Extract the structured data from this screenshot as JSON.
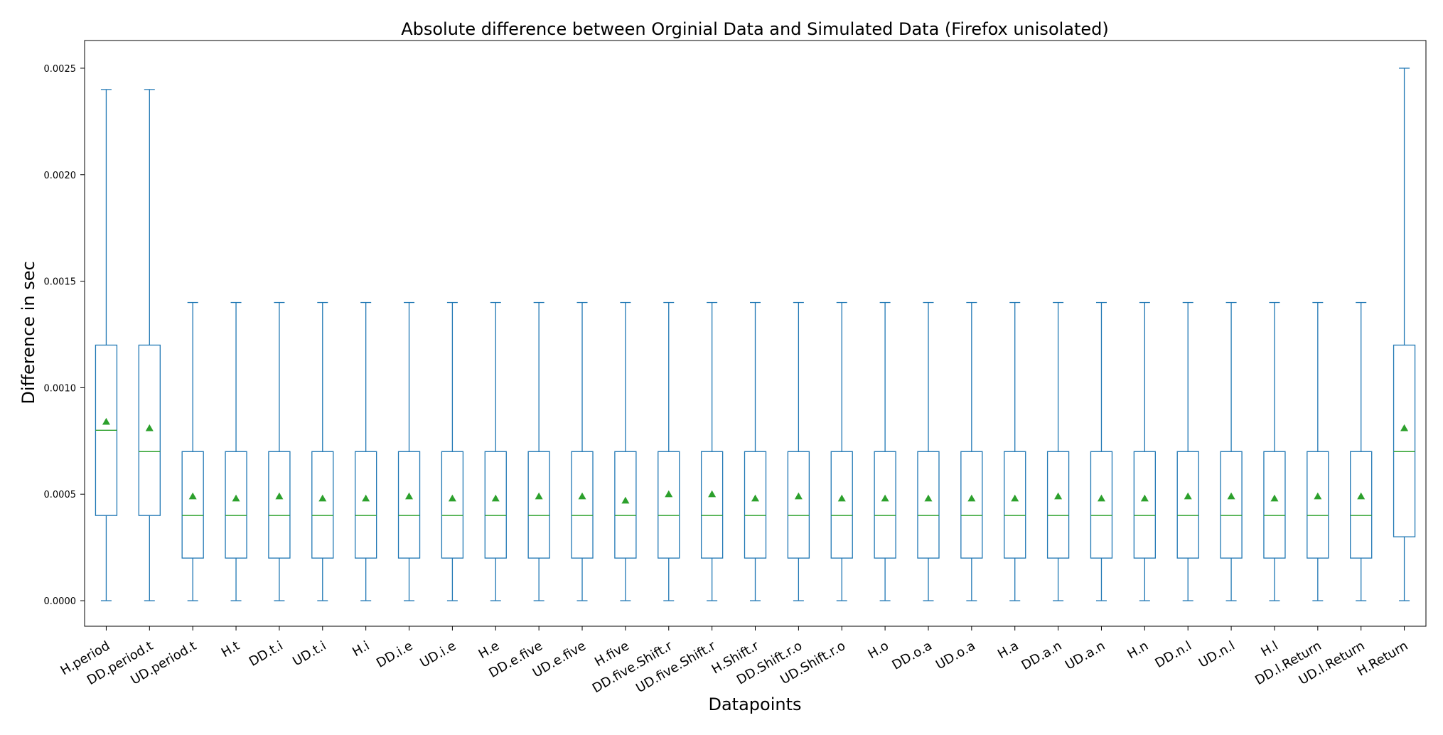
{
  "chart_data": {
    "type": "box",
    "title": "Absolute difference between Orginial Data and Simulated Data (Firefox unisolated)",
    "xlabel": "Datapoints",
    "ylabel": "Difference in sec",
    "ylim": [
      -0.00012,
      0.00263
    ],
    "yticks": [
      0.0,
      0.0005,
      0.001,
      0.0015,
      0.002,
      0.0025
    ],
    "ytick_labels": [
      "0.0000",
      "0.0005",
      "0.0010",
      "0.0015",
      "0.0020",
      "0.0025"
    ],
    "grid": false,
    "colors": {
      "box": "#1f77b4",
      "median": "#2ca02c",
      "mean": "#2ca02c"
    },
    "categories": [
      "H.period",
      "DD.period.t",
      "UD.period.t",
      "H.t",
      "DD.t.i",
      "UD.t.i",
      "H.i",
      "DD.i.e",
      "UD.i.e",
      "H.e",
      "DD.e.five",
      "UD.e.five",
      "H.five",
      "DD.five.Shift.r",
      "UD.five.Shift.r",
      "H.Shift.r",
      "DD.Shift.r.o",
      "UD.Shift.r.o",
      "H.o",
      "DD.o.a",
      "UD.o.a",
      "H.a",
      "DD.a.n",
      "UD.a.n",
      "H.n",
      "DD.n.l",
      "UD.n.l",
      "H.l",
      "DD.l.Return",
      "UD.l.Return",
      "H.Return"
    ],
    "boxes": [
      {
        "whislo": 0.0,
        "q1": 0.0004,
        "median": 0.0008,
        "q3": 0.0012,
        "whishi": 0.0024,
        "mean": 0.00084
      },
      {
        "whislo": 0.0,
        "q1": 0.0004,
        "median": 0.0007,
        "q3": 0.0012,
        "whishi": 0.0024,
        "mean": 0.00081
      },
      {
        "whislo": 0.0,
        "q1": 0.0002,
        "median": 0.0004,
        "q3": 0.0007,
        "whishi": 0.0014,
        "mean": 0.00049
      },
      {
        "whislo": 0.0,
        "q1": 0.0002,
        "median": 0.0004,
        "q3": 0.0007,
        "whishi": 0.0014,
        "mean": 0.00048
      },
      {
        "whislo": 0.0,
        "q1": 0.0002,
        "median": 0.0004,
        "q3": 0.0007,
        "whishi": 0.0014,
        "mean": 0.00049
      },
      {
        "whislo": 0.0,
        "q1": 0.0002,
        "median": 0.0004,
        "q3": 0.0007,
        "whishi": 0.0014,
        "mean": 0.00048
      },
      {
        "whislo": 0.0,
        "q1": 0.0002,
        "median": 0.0004,
        "q3": 0.0007,
        "whishi": 0.0014,
        "mean": 0.00048
      },
      {
        "whislo": 0.0,
        "q1": 0.0002,
        "median": 0.0004,
        "q3": 0.0007,
        "whishi": 0.0014,
        "mean": 0.00049
      },
      {
        "whislo": 0.0,
        "q1": 0.0002,
        "median": 0.0004,
        "q3": 0.0007,
        "whishi": 0.0014,
        "mean": 0.00048
      },
      {
        "whislo": 0.0,
        "q1": 0.0002,
        "median": 0.0004,
        "q3": 0.0007,
        "whishi": 0.0014,
        "mean": 0.00048
      },
      {
        "whislo": 0.0,
        "q1": 0.0002,
        "median": 0.0004,
        "q3": 0.0007,
        "whishi": 0.0014,
        "mean": 0.00049
      },
      {
        "whislo": 0.0,
        "q1": 0.0002,
        "median": 0.0004,
        "q3": 0.0007,
        "whishi": 0.0014,
        "mean": 0.00049
      },
      {
        "whislo": 0.0,
        "q1": 0.0002,
        "median": 0.0004,
        "q3": 0.0007,
        "whishi": 0.0014,
        "mean": 0.00047
      },
      {
        "whislo": 0.0,
        "q1": 0.0002,
        "median": 0.0004,
        "q3": 0.0007,
        "whishi": 0.0014,
        "mean": 0.0005
      },
      {
        "whislo": 0.0,
        "q1": 0.0002,
        "median": 0.0004,
        "q3": 0.0007,
        "whishi": 0.0014,
        "mean": 0.0005
      },
      {
        "whislo": 0.0,
        "q1": 0.0002,
        "median": 0.0004,
        "q3": 0.0007,
        "whishi": 0.0014,
        "mean": 0.00048
      },
      {
        "whislo": 0.0,
        "q1": 0.0002,
        "median": 0.0004,
        "q3": 0.0007,
        "whishi": 0.0014,
        "mean": 0.00049
      },
      {
        "whislo": 0.0,
        "q1": 0.0002,
        "median": 0.0004,
        "q3": 0.0007,
        "whishi": 0.0014,
        "mean": 0.00048
      },
      {
        "whislo": 0.0,
        "q1": 0.0002,
        "median": 0.0004,
        "q3": 0.0007,
        "whishi": 0.0014,
        "mean": 0.00048
      },
      {
        "whislo": 0.0,
        "q1": 0.0002,
        "median": 0.0004,
        "q3": 0.0007,
        "whishi": 0.0014,
        "mean": 0.00048
      },
      {
        "whislo": 0.0,
        "q1": 0.0002,
        "median": 0.0004,
        "q3": 0.0007,
        "whishi": 0.0014,
        "mean": 0.00048
      },
      {
        "whislo": 0.0,
        "q1": 0.0002,
        "median": 0.0004,
        "q3": 0.0007,
        "whishi": 0.0014,
        "mean": 0.00048
      },
      {
        "whislo": 0.0,
        "q1": 0.0002,
        "median": 0.0004,
        "q3": 0.0007,
        "whishi": 0.0014,
        "mean": 0.00049
      },
      {
        "whislo": 0.0,
        "q1": 0.0002,
        "median": 0.0004,
        "q3": 0.0007,
        "whishi": 0.0014,
        "mean": 0.00048
      },
      {
        "whislo": 0.0,
        "q1": 0.0002,
        "median": 0.0004,
        "q3": 0.0007,
        "whishi": 0.0014,
        "mean": 0.00048
      },
      {
        "whislo": 0.0,
        "q1": 0.0002,
        "median": 0.0004,
        "q3": 0.0007,
        "whishi": 0.0014,
        "mean": 0.00049
      },
      {
        "whislo": 0.0,
        "q1": 0.0002,
        "median": 0.0004,
        "q3": 0.0007,
        "whishi": 0.0014,
        "mean": 0.00049
      },
      {
        "whislo": 0.0,
        "q1": 0.0002,
        "median": 0.0004,
        "q3": 0.0007,
        "whishi": 0.0014,
        "mean": 0.00048
      },
      {
        "whislo": 0.0,
        "q1": 0.0002,
        "median": 0.0004,
        "q3": 0.0007,
        "whishi": 0.0014,
        "mean": 0.00049
      },
      {
        "whislo": 0.0,
        "q1": 0.0002,
        "median": 0.0004,
        "q3": 0.0007,
        "whishi": 0.0014,
        "mean": 0.00049
      },
      {
        "whislo": 0.0,
        "q1": 0.0003,
        "median": 0.0007,
        "q3": 0.0012,
        "whishi": 0.0025,
        "mean": 0.00081
      }
    ]
  }
}
